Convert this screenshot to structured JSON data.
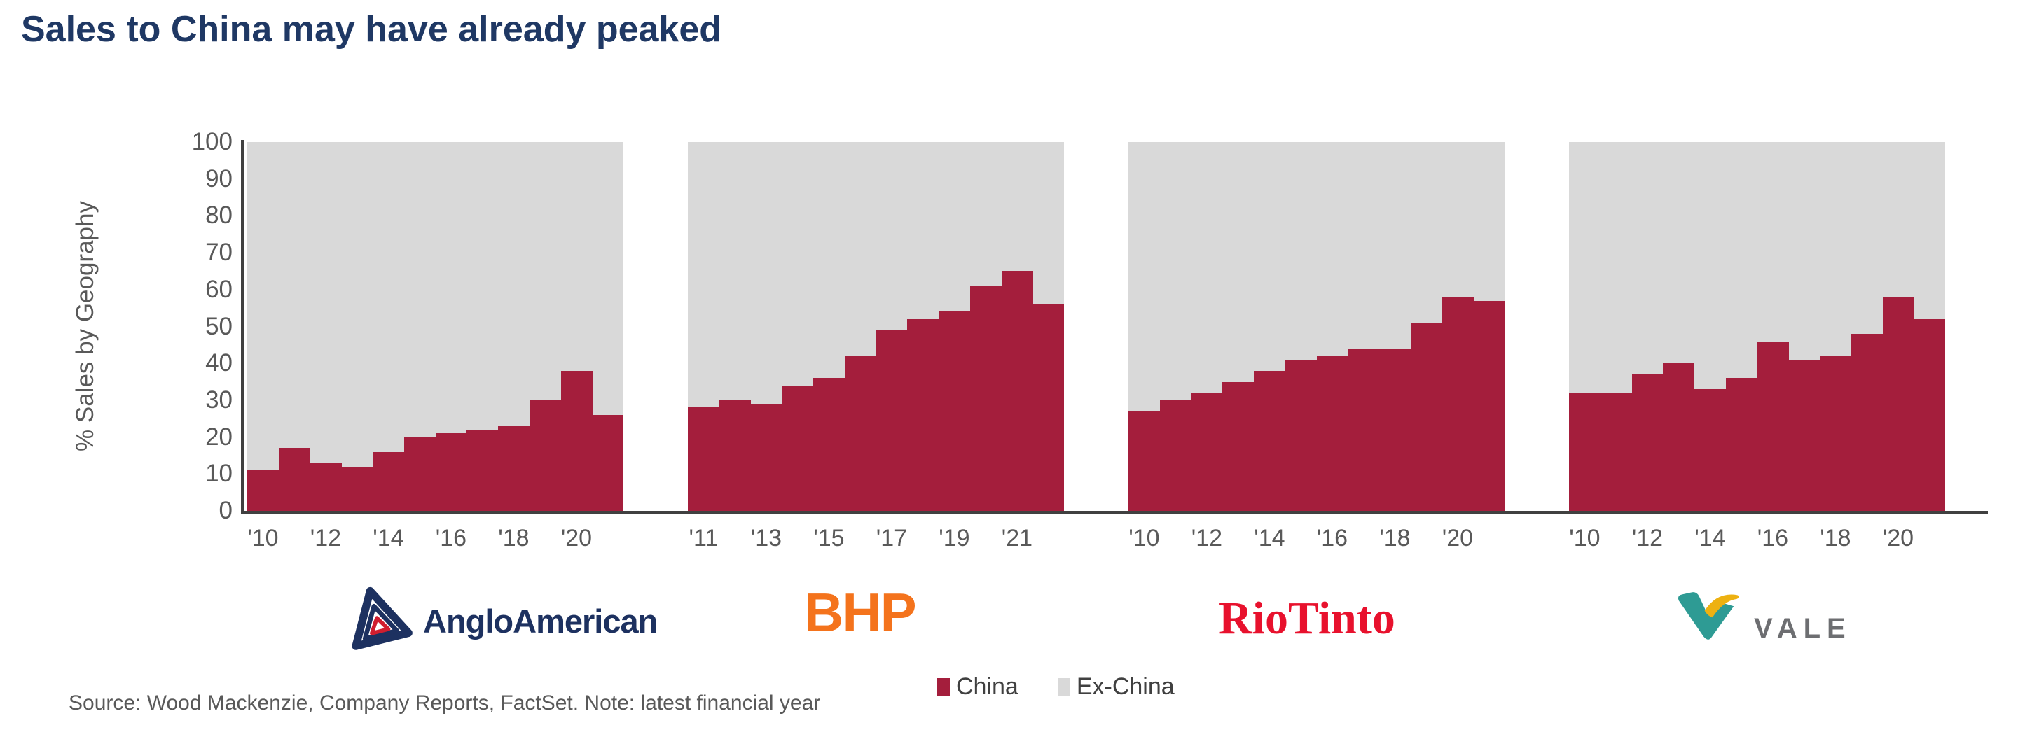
{
  "title": "Sales to China may have already peaked",
  "y_axis": {
    "label": "% Sales by Geography",
    "ticks": [
      0,
      10,
      20,
      30,
      40,
      50,
      60,
      70,
      80,
      90,
      100
    ]
  },
  "colors": {
    "china": "#A41E3C",
    "ex_china": "#D9D9D9",
    "title_navy": "#1F3864",
    "axis": "#404040",
    "tick_text": "#595959",
    "anglo_navy": "#1D3160",
    "anglo_red": "#D01E2F",
    "bhp_orange": "#F4731C",
    "rio_red": "#E8112D",
    "vale_teal": "#2E9B94",
    "vale_yellow": "#EDB111",
    "vale_gray": "#6D6E71"
  },
  "chart_data": [
    {
      "type": "bar",
      "subtype": "stacked-100",
      "company": "AngloAmerican",
      "categories": [
        "'10",
        "'11",
        "'12",
        "'13",
        "'14",
        "'15",
        "'16",
        "'17",
        "'18",
        "'19",
        "'20",
        "'21"
      ],
      "x_tick_labels": [
        "'10",
        "'12",
        "'14",
        "'16",
        "'18",
        "'20"
      ],
      "series": [
        {
          "name": "China",
          "values": [
            11,
            17,
            13,
            12,
            16,
            20,
            21,
            22,
            23,
            30,
            38,
            26
          ]
        },
        {
          "name": "Ex-China",
          "values": [
            89,
            83,
            87,
            88,
            84,
            80,
            79,
            78,
            77,
            70,
            62,
            74
          ]
        }
      ],
      "ylim": [
        0,
        100
      ]
    },
    {
      "type": "bar",
      "subtype": "stacked-100",
      "company": "BHP",
      "categories": [
        "'11",
        "'12",
        "'13",
        "'14",
        "'15",
        "'16",
        "'17",
        "'18",
        "'19",
        "'20",
        "'21",
        "'22"
      ],
      "x_tick_labels": [
        "'11",
        "'13",
        "'15",
        "'17",
        "'19",
        "'21"
      ],
      "series": [
        {
          "name": "China",
          "values": [
            28,
            30,
            29,
            34,
            36,
            42,
            49,
            52,
            54,
            61,
            65,
            56
          ]
        },
        {
          "name": "Ex-China",
          "values": [
            72,
            70,
            71,
            66,
            64,
            58,
            51,
            48,
            46,
            39,
            35,
            44
          ]
        }
      ],
      "ylim": [
        0,
        100
      ]
    },
    {
      "type": "bar",
      "subtype": "stacked-100",
      "company": "RioTinto",
      "categories": [
        "'10",
        "'11",
        "'12",
        "'13",
        "'14",
        "'15",
        "'16",
        "'17",
        "'18",
        "'19",
        "'20",
        "'21"
      ],
      "x_tick_labels": [
        "'10",
        "'12",
        "'14",
        "'16",
        "'18",
        "'20"
      ],
      "series": [
        {
          "name": "China",
          "values": [
            27,
            30,
            32,
            35,
            38,
            41,
            42,
            44,
            44,
            51,
            58,
            57
          ]
        },
        {
          "name": "Ex-China",
          "values": [
            73,
            70,
            68,
            65,
            62,
            59,
            58,
            56,
            56,
            49,
            42,
            43
          ]
        }
      ],
      "ylim": [
        0,
        100
      ]
    },
    {
      "type": "bar",
      "subtype": "stacked-100",
      "company": "Vale",
      "categories": [
        "'10",
        "'11",
        "'12",
        "'13",
        "'14",
        "'15",
        "'16",
        "'17",
        "'18",
        "'19",
        "'20",
        "'21"
      ],
      "x_tick_labels": [
        "'10",
        "'12",
        "'14",
        "'16",
        "'18",
        "'20"
      ],
      "series": [
        {
          "name": "China",
          "values": [
            32,
            32,
            37,
            40,
            33,
            36,
            46,
            41,
            42,
            48,
            58,
            52
          ]
        },
        {
          "name": "Ex-China",
          "values": [
            68,
            68,
            63,
            60,
            67,
            64,
            54,
            59,
            58,
            52,
            42,
            48
          ]
        }
      ],
      "ylim": [
        0,
        100
      ]
    }
  ],
  "legend": {
    "items": [
      {
        "label": "China",
        "color": "#A41E3C"
      },
      {
        "label": "Ex-China",
        "color": "#D9D9D9"
      }
    ]
  },
  "logos": {
    "anglo_american": {
      "text": "AngloAmerican"
    },
    "bhp": {
      "text": "BHP"
    },
    "rio_tinto": {
      "text": "RioTinto"
    },
    "vale": {
      "text": "VALE"
    }
  },
  "source_note": "Source: Wood Mackenzie, Company Reports, FactSet. Note: latest financial year"
}
